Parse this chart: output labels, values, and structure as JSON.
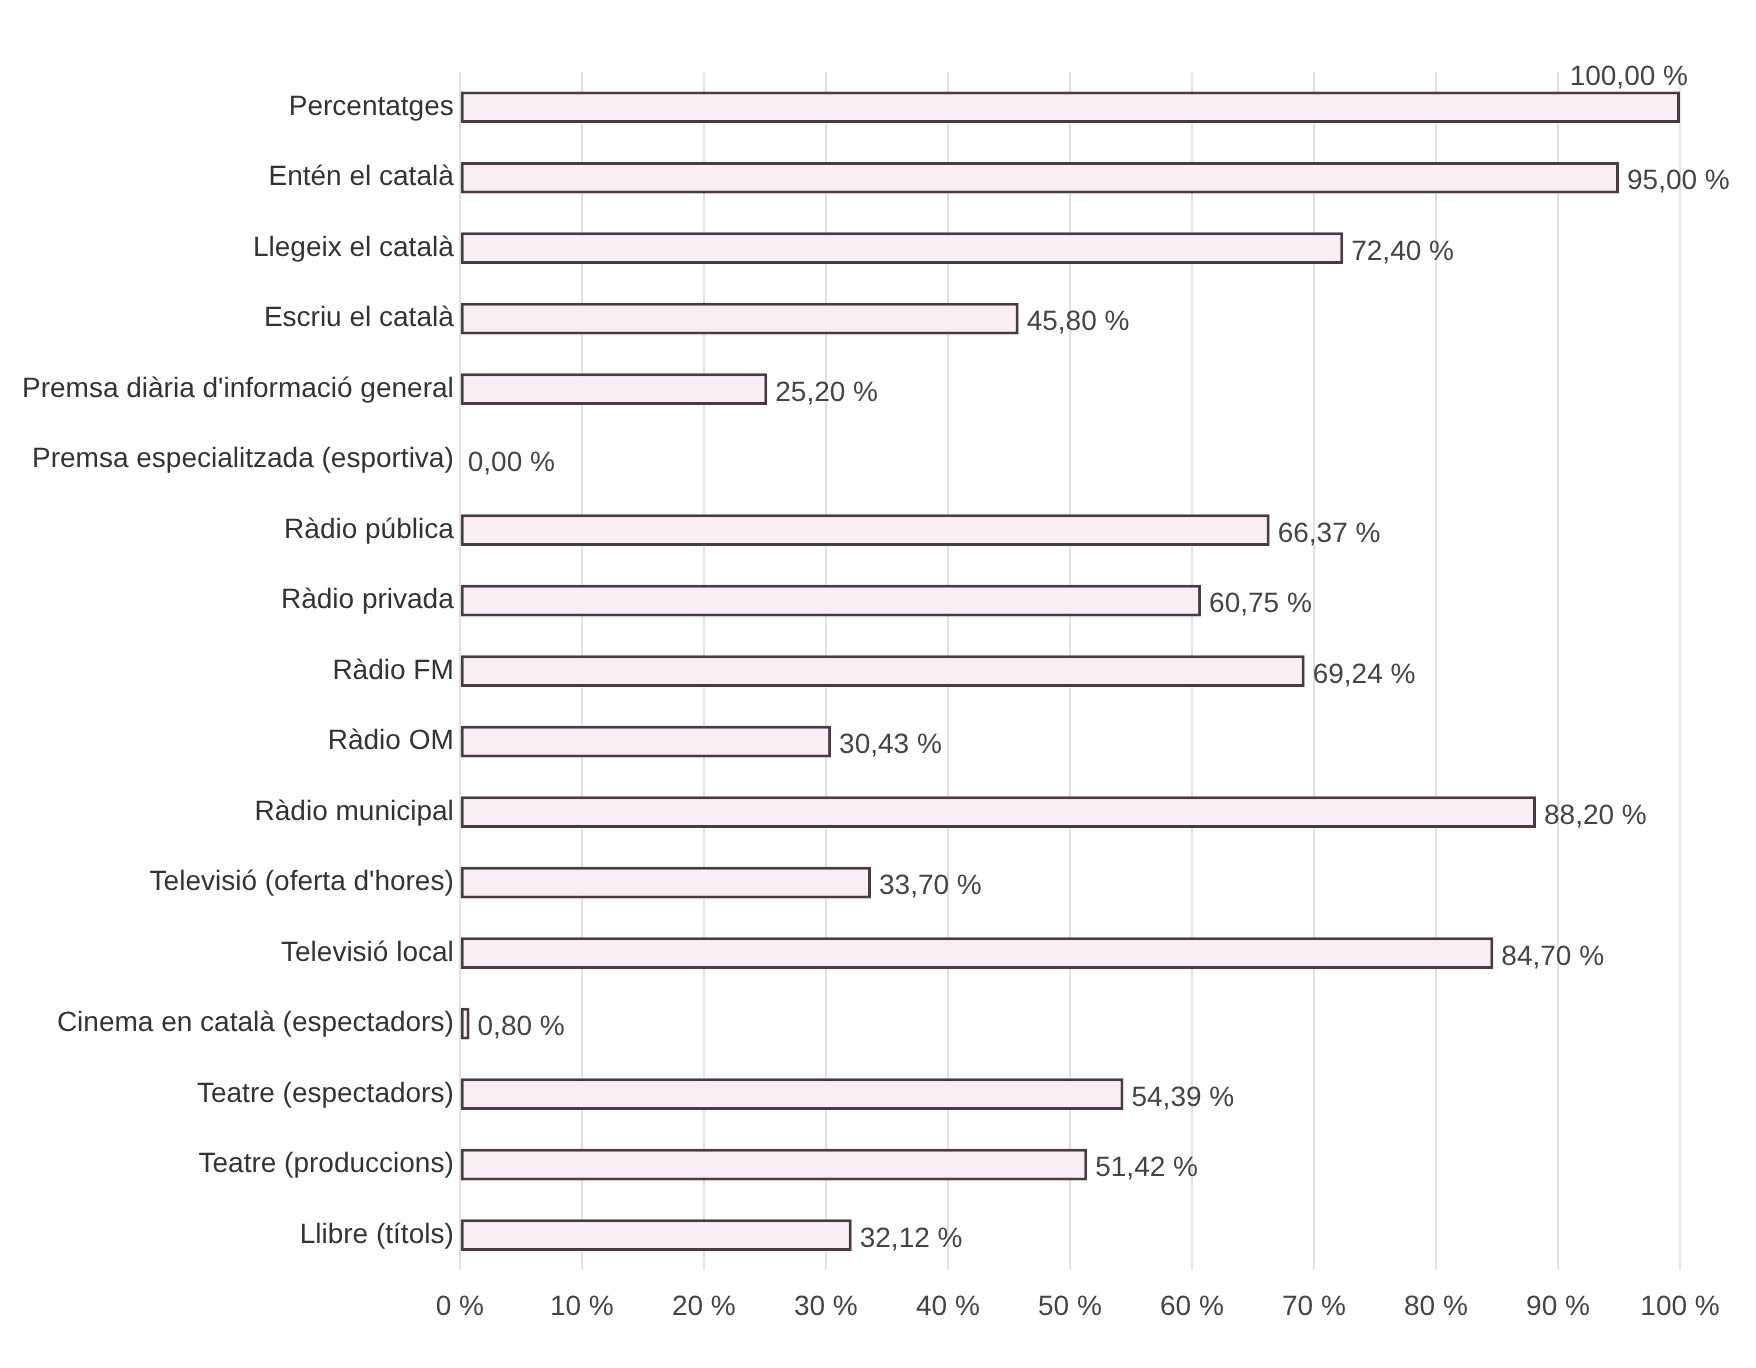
{
  "chart_data": {
    "type": "bar",
    "orientation": "horizontal",
    "categories": [
      "Percentatges",
      "Entén el català",
      "Llegeix el català",
      "Escriu el català",
      "Premsa diària d'informació general",
      "Premsa especialitzada (esportiva)",
      "Ràdio pública",
      "Ràdio privada",
      "Ràdio FM",
      "Ràdio OM",
      "Ràdio municipal",
      "Televisió (oferta d'hores)",
      "Televisió local",
      "Cinema en català (espectadors)",
      "Teatre (espectadors)",
      "Teatre (produccions)",
      "Llibre (títols)"
    ],
    "values": [
      100,
      95,
      72.4,
      45.8,
      25.2,
      0,
      66.37,
      60.75,
      69.24,
      30.43,
      88.2,
      33.7,
      84.7,
      0.8,
      54.39,
      51.42,
      32.12
    ],
    "value_labels": [
      "100,00 %",
      "95,00 %",
      "72,40 %",
      "45,80 %",
      "25,20 %",
      "0,00 %",
      "66,37 %",
      "60,75 %",
      "69,24 %",
      "30,43 %",
      "88,20 %",
      "33,70 %",
      "84,70 %",
      "0,80 %",
      "54,39 %",
      "51,42 %",
      "32,12 %"
    ],
    "color": "#f8eef3",
    "xlim": [
      0,
      100
    ],
    "xticks": [
      {
        "value": 0,
        "label": "0 %"
      },
      {
        "value": 10,
        "label": "10 %"
      },
      {
        "value": 20,
        "label": "20 %"
      },
      {
        "value": 30,
        "label": "30 %"
      },
      {
        "value": 40,
        "label": "40 %"
      },
      {
        "value": 50,
        "label": "50 %"
      },
      {
        "value": 60,
        "label": "60 %"
      },
      {
        "value": 70,
        "label": "70 %"
      },
      {
        "value": 80,
        "label": "80 %"
      },
      {
        "value": 90,
        "label": "90 %"
      },
      {
        "value": 100,
        "label": "100 %"
      }
    ],
    "grid": "x",
    "legend": false
  }
}
